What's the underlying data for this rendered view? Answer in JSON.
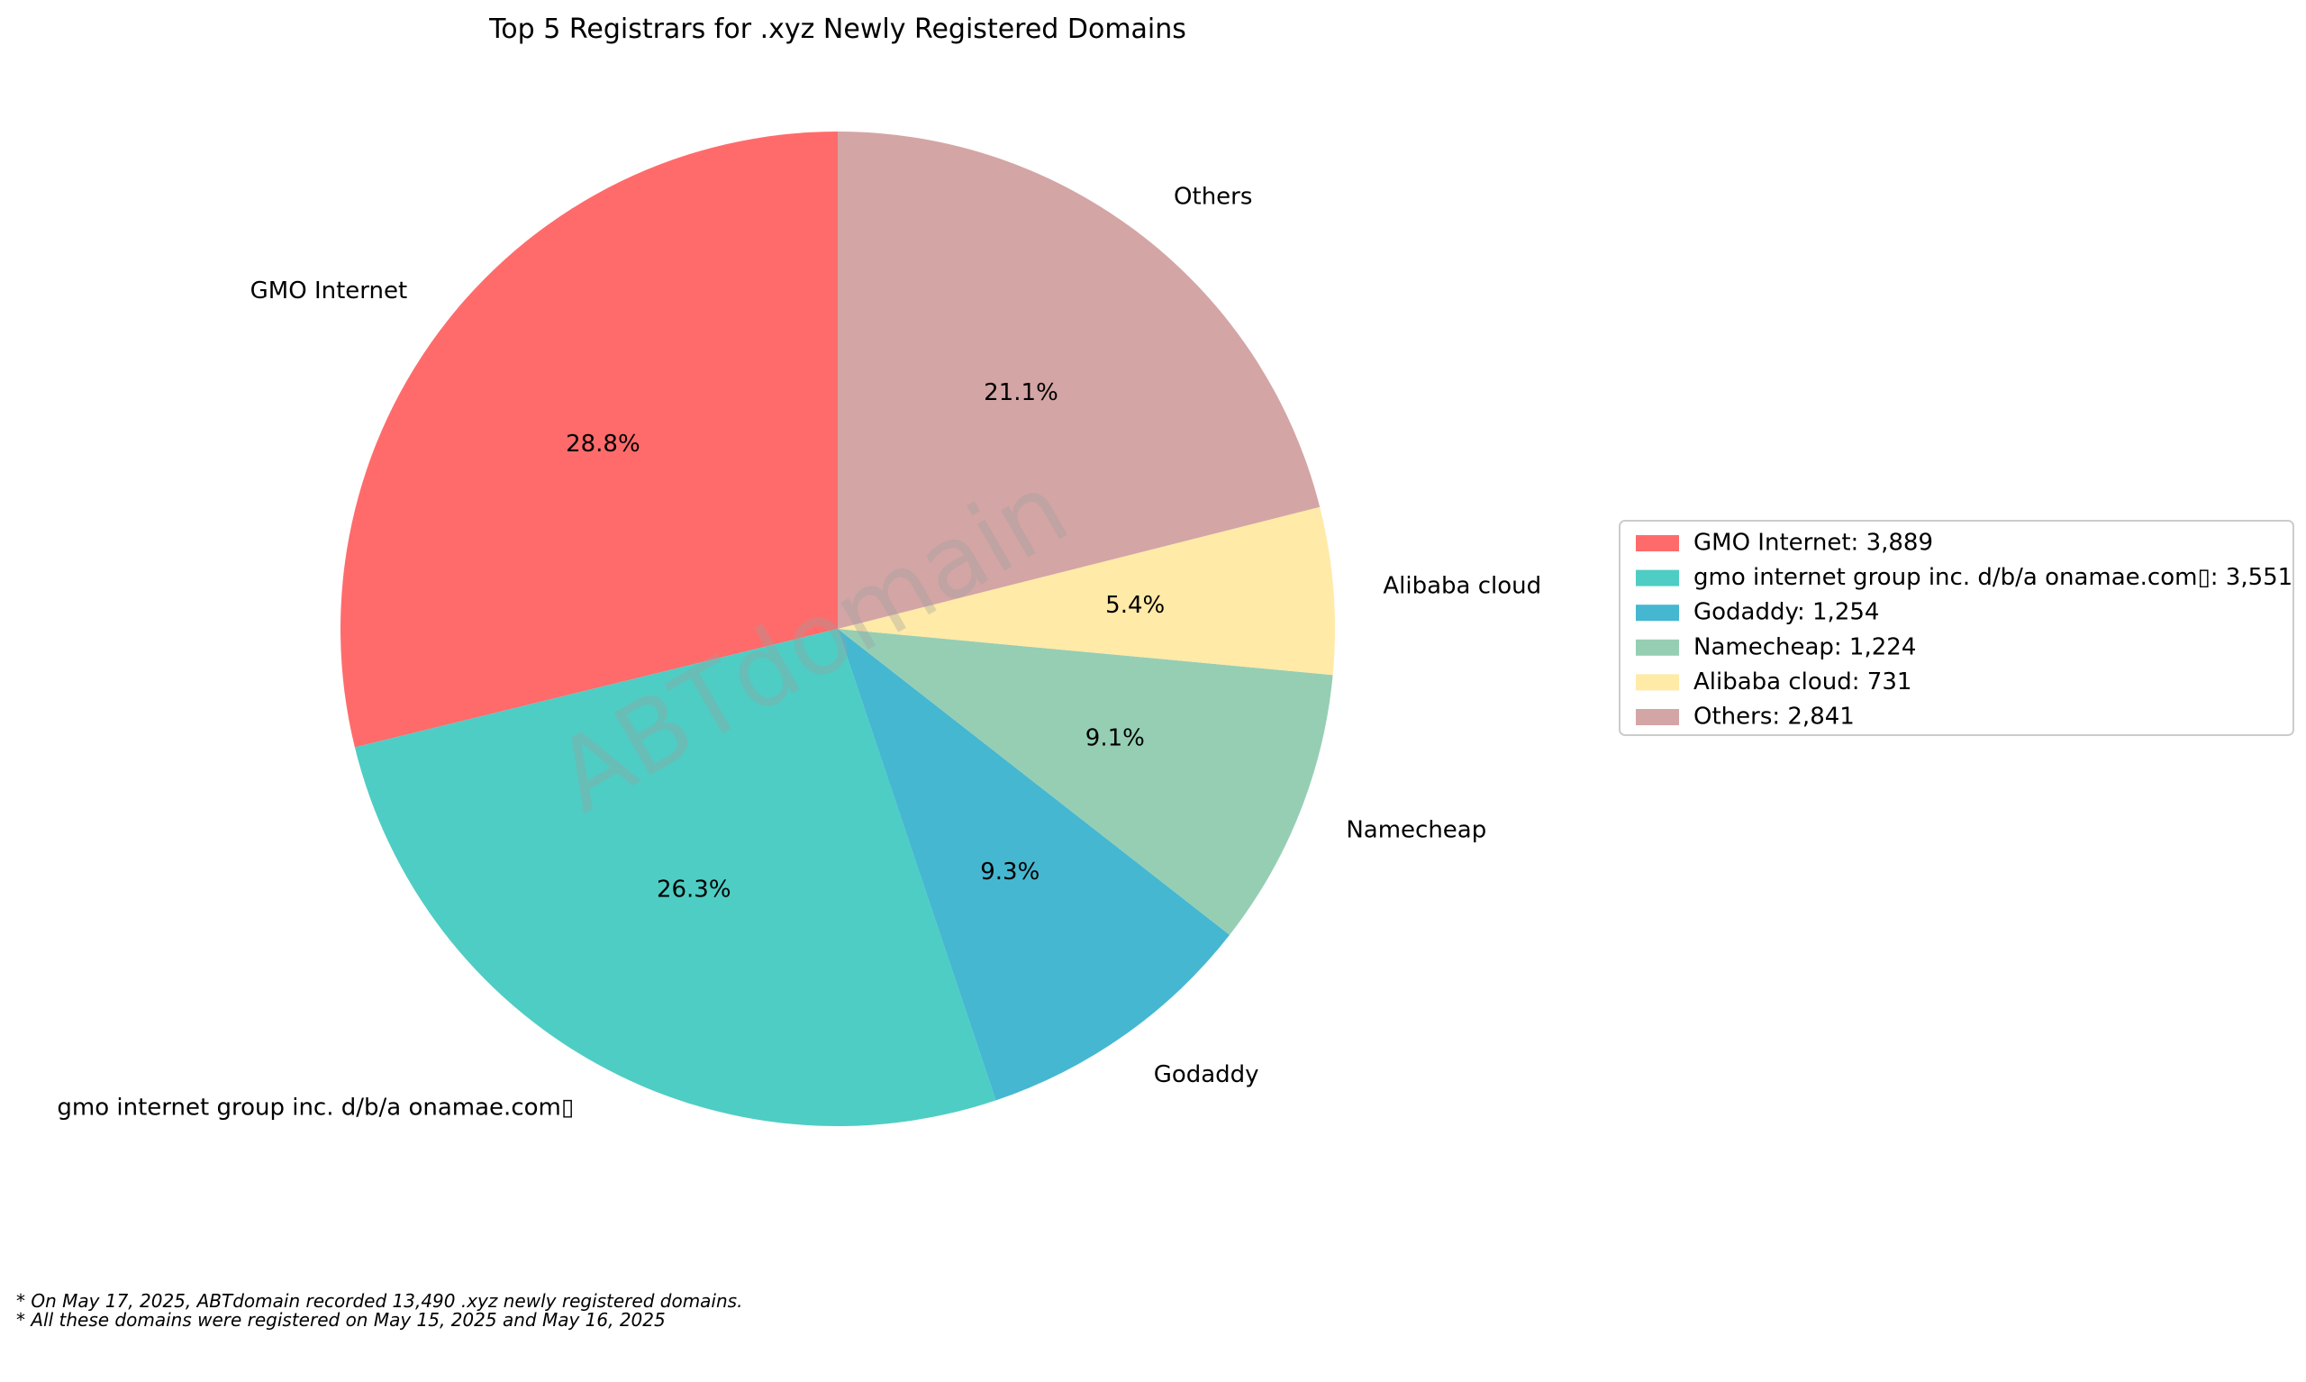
{
  "chart_data": {
    "type": "pie",
    "title": "Top 5 Registrars for .xyz Newly Registered Domains",
    "slices": [
      {
        "label": "GMO Internet",
        "value": 3889,
        "percent_label": "28.8%",
        "legend_label": "GMO Internet: 3,889",
        "color": "#FF6B6B"
      },
      {
        "label": "gmo internet group inc. d/b/a onamae.com▯",
        "value": 3551,
        "percent_label": "26.3%",
        "legend_label": "gmo internet group inc. d/b/a onamae.com▯: 3,551",
        "color": "#4ECDC4"
      },
      {
        "label": "Godaddy",
        "value": 1254,
        "percent_label": "9.3%",
        "legend_label": "Godaddy: 1,254",
        "color": "#45B7D1"
      },
      {
        "label": "Namecheap",
        "value": 1224,
        "percent_label": "9.1%",
        "legend_label": "Namecheap: 1,224",
        "color": "#96CEB4"
      },
      {
        "label": "Alibaba cloud",
        "value": 731,
        "percent_label": "5.4%",
        "legend_label": "Alibaba cloud: 731",
        "color": "#FFEAA7"
      },
      {
        "label": "Others",
        "value": 2841,
        "percent_label": "21.1%",
        "legend_label": "Others: 2,841",
        "color": "#D4A5A5"
      }
    ],
    "start_angle_deg": 90,
    "direction": "counterclockwise",
    "legend_position": "right"
  },
  "watermark": "ABTdomain",
  "footnotes": [
    "* On May 17, 2025, ABTdomain recorded 13,490 .xyz newly registered domains.",
    "* All these domains were registered on May 15, 2025 and May 16, 2025"
  ]
}
